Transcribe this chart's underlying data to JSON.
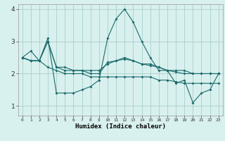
{
  "xlabel": "Humidex (Indice chaleur)",
  "bg_color": "#d8f0ee",
  "grid_color": "#aacfcc",
  "line_color": "#1a6b6b",
  "x": [
    0,
    1,
    2,
    3,
    4,
    5,
    6,
    7,
    8,
    9,
    10,
    11,
    12,
    13,
    14,
    15,
    16,
    17,
    18,
    19,
    20,
    21,
    22,
    23
  ],
  "series1": [
    2.5,
    2.7,
    2.4,
    3.1,
    1.4,
    1.4,
    1.4,
    1.5,
    1.6,
    1.8,
    3.1,
    3.7,
    4.0,
    3.6,
    3.0,
    2.5,
    2.1,
    2.1,
    1.7,
    1.8,
    1.1,
    1.4,
    1.5,
    2.0
  ],
  "series2": [
    2.5,
    2.4,
    2.4,
    3.0,
    2.2,
    2.2,
    2.1,
    2.1,
    2.1,
    2.1,
    2.3,
    2.4,
    2.5,
    2.4,
    2.3,
    2.3,
    2.2,
    2.1,
    2.1,
    2.1,
    2.0,
    2.0,
    2.0,
    2.0
  ],
  "series3": [
    2.5,
    2.4,
    2.4,
    2.2,
    2.1,
    2.0,
    2.0,
    2.0,
    1.9,
    1.9,
    1.9,
    1.9,
    1.9,
    1.9,
    1.9,
    1.9,
    1.8,
    1.8,
    1.75,
    1.7,
    1.7,
    1.7,
    1.7,
    1.7
  ],
  "series4": [
    2.5,
    2.4,
    2.4,
    3.0,
    2.2,
    2.1,
    2.1,
    2.1,
    2.0,
    2.0,
    2.35,
    2.4,
    2.45,
    2.4,
    2.3,
    2.25,
    2.2,
    2.1,
    2.05,
    2.0,
    2.0,
    2.0,
    2.0,
    2.0
  ],
  "ylim": [
    0.7,
    4.15
  ],
  "yticks": [
    1,
    2,
    3,
    4
  ],
  "xticks": [
    0,
    1,
    2,
    3,
    4,
    5,
    6,
    7,
    8,
    9,
    10,
    11,
    12,
    13,
    14,
    15,
    16,
    17,
    18,
    19,
    20,
    21,
    22,
    23
  ]
}
